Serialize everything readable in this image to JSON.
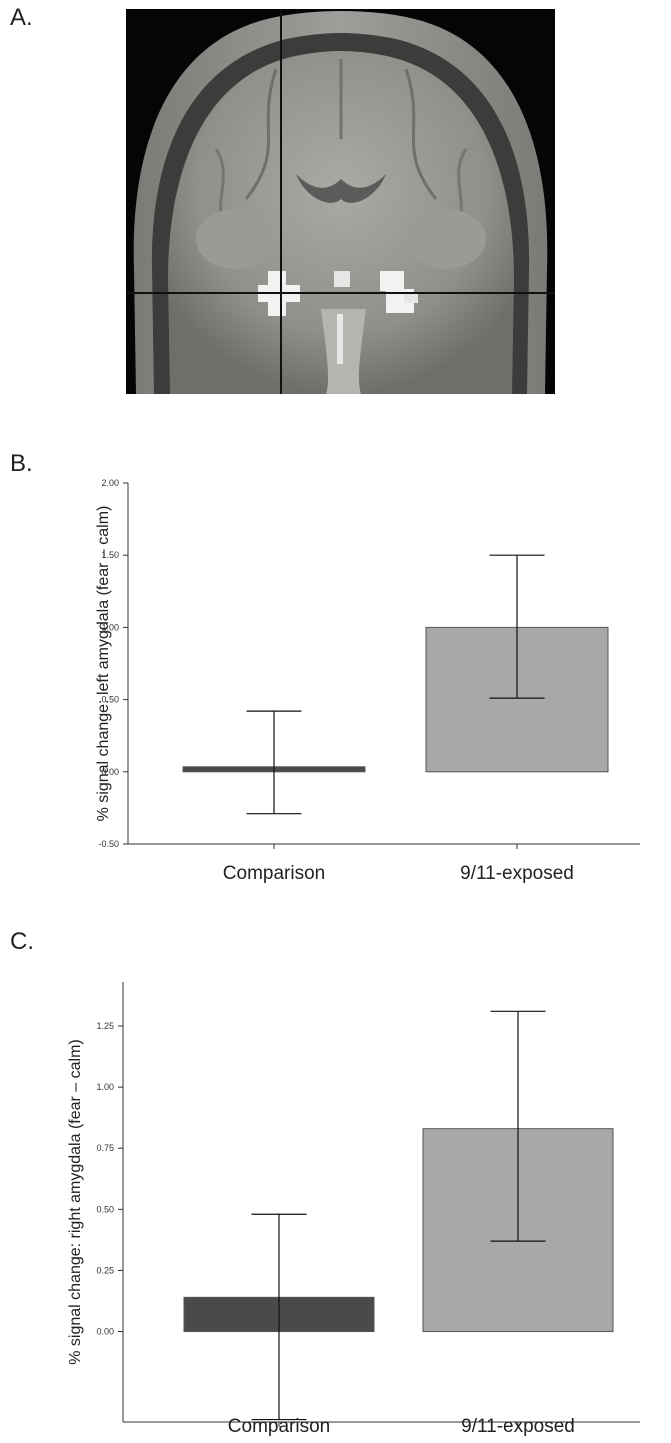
{
  "panels": {
    "a": {
      "label": "A."
    },
    "b": {
      "label": "B."
    },
    "c": {
      "label": "C."
    }
  },
  "chart_data": [
    {
      "type": "bar",
      "panel": "B.",
      "categories": [
        "Comparison",
        "9/11-exposed"
      ],
      "series": [
        {
          "values": [
            0.02,
            1.0
          ],
          "error_low": [
            -0.29,
            0.51
          ],
          "error_high": [
            0.42,
            1.5
          ],
          "colors": [
            "#4a4a4a",
            "#a8a8a8"
          ]
        }
      ],
      "ylabel": "% signal change: left amygdala (fear – calm)",
      "ylim": [
        -0.5,
        2.0
      ],
      "yticks": [
        -0.5,
        0.0,
        0.5,
        1.0,
        1.5,
        2.0
      ],
      "ytick_labels": [
        "-0.50",
        "0.00",
        "0.50",
        "1.00",
        "1.50",
        "2.00"
      ],
      "grid": false
    },
    {
      "type": "bar",
      "panel": "C.",
      "categories": [
        "Comparison",
        "9/11-exposed"
      ],
      "series": [
        {
          "values": [
            0.14,
            0.83
          ],
          "error_low": [
            -0.36,
            0.37
          ],
          "error_high": [
            0.48,
            1.31
          ],
          "colors": [
            "#4a4a4a",
            "#a8a8a8"
          ]
        }
      ],
      "ylabel": "% signal change: right amygdala (fear – calm)",
      "ylim": [
        -0.37,
        1.43
      ],
      "yticks": [
        0.0,
        0.25,
        0.5,
        0.75,
        1.0,
        1.25
      ],
      "ytick_labels": [
        "0.00",
        "0.25",
        "0.50",
        "0.75",
        "1.00",
        "1.25"
      ],
      "grid": false
    }
  ]
}
